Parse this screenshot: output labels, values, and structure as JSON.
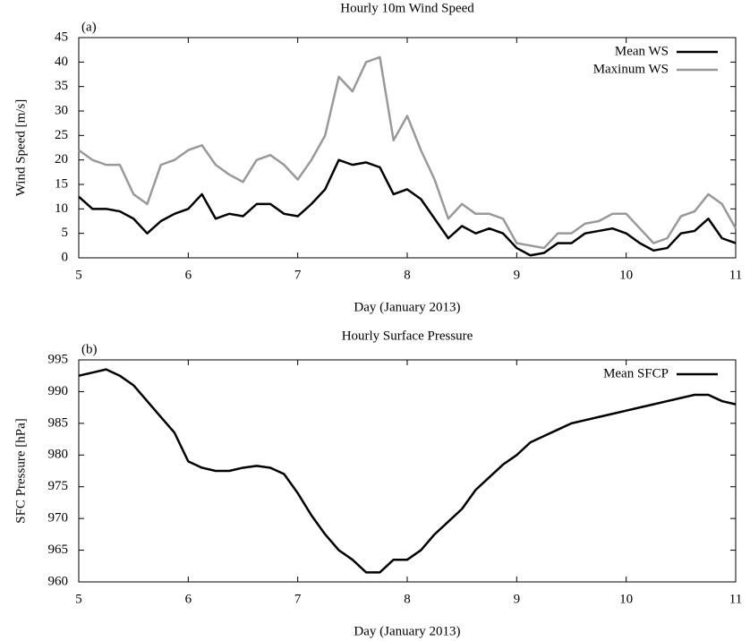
{
  "chart_data": [
    {
      "type": "line",
      "title": "Hourly 10m Wind Speed",
      "panel_label": "(a)",
      "x_label": "Day (January 2013)",
      "y_label": "Wind Speed [m/s]",
      "x": [
        5.0,
        5.125,
        5.25,
        5.375,
        5.5,
        5.625,
        5.75,
        5.875,
        6.0,
        6.125,
        6.25,
        6.375,
        6.5,
        6.625,
        6.75,
        6.875,
        7.0,
        7.125,
        7.25,
        7.375,
        7.5,
        7.625,
        7.75,
        7.875,
        8.0,
        8.125,
        8.25,
        8.375,
        8.5,
        8.625,
        8.75,
        8.875,
        9.0,
        9.125,
        9.25,
        9.375,
        9.5,
        9.625,
        9.75,
        9.875,
        10.0,
        10.125,
        10.25,
        10.375,
        10.5,
        10.625,
        10.75,
        10.875,
        11.0
      ],
      "series": [
        {
          "name": "Mean WS",
          "color": "#000000",
          "values": [
            12.5,
            10,
            10,
            9.5,
            8,
            5,
            7.5,
            9,
            10,
            13,
            8,
            9,
            8.5,
            11,
            11,
            9,
            8.5,
            11,
            14,
            20,
            19,
            19.5,
            18.5,
            13,
            14,
            12,
            8,
            4,
            6.5,
            5,
            6,
            5,
            2,
            0.5,
            1,
            3,
            3,
            5,
            5.5,
            6,
            5,
            3,
            1.5,
            2,
            5,
            5.5,
            8,
            4,
            3
          ]
        },
        {
          "name": "Maxinum WS",
          "color": "#999999",
          "values": [
            22,
            20,
            19,
            19,
            13,
            11,
            19,
            20,
            22,
            23,
            19,
            17,
            15.5,
            20,
            21,
            19,
            16,
            20,
            25,
            37,
            34,
            40,
            41,
            24,
            29,
            22,
            16,
            8,
            11,
            9,
            9,
            8,
            3,
            2.5,
            2,
            5,
            5,
            7,
            7.5,
            9,
            9,
            6,
            3,
            4,
            8.5,
            9.5,
            13,
            11,
            6
          ]
        }
      ],
      "xlim": [
        5,
        11
      ],
      "xticks": [
        5,
        6,
        7,
        8,
        9,
        10,
        11
      ],
      "ylim": [
        0,
        45
      ],
      "yticks": [
        0,
        5,
        10,
        15,
        20,
        25,
        30,
        35,
        40,
        45
      ],
      "legend": "top-right"
    },
    {
      "type": "line",
      "title": "Hourly Surface Pressure",
      "panel_label": "(b)",
      "x_label": "Day (January 2013)",
      "y_label": "SFC Pressure [hPa]",
      "x": [
        5.0,
        5.125,
        5.25,
        5.375,
        5.5,
        5.625,
        5.75,
        5.875,
        6.0,
        6.125,
        6.25,
        6.375,
        6.5,
        6.625,
        6.75,
        6.875,
        7.0,
        7.125,
        7.25,
        7.375,
        7.5,
        7.625,
        7.75,
        7.875,
        8.0,
        8.125,
        8.25,
        8.375,
        8.5,
        8.625,
        8.75,
        8.875,
        9.0,
        9.125,
        9.25,
        9.375,
        9.5,
        9.625,
        9.75,
        9.875,
        10.0,
        10.125,
        10.25,
        10.375,
        10.5,
        10.625,
        10.75,
        10.875,
        11.0
      ],
      "series": [
        {
          "name": "Mean SFCP",
          "color": "#000000",
          "values": [
            992.5,
            993,
            993.5,
            992.5,
            991,
            988.5,
            986,
            983.5,
            979,
            978,
            977.5,
            977.5,
            978,
            978.3,
            978,
            977,
            974,
            970.5,
            967.5,
            965,
            963.5,
            961.5,
            961.5,
            963.5,
            963.5,
            965,
            967.5,
            969.5,
            971.5,
            974.5,
            976.5,
            978.5,
            980,
            982,
            983,
            984,
            985,
            985.5,
            986,
            986.5,
            987,
            987.5,
            988,
            988.5,
            989,
            989.5,
            989.5,
            988.5,
            988
          ]
        }
      ],
      "xlim": [
        5,
        11
      ],
      "xticks": [
        5,
        6,
        7,
        8,
        9,
        10,
        11
      ],
      "ylim": [
        960,
        995
      ],
      "yticks": [
        960,
        965,
        970,
        975,
        980,
        985,
        990,
        995
      ],
      "legend": "top-right"
    }
  ]
}
